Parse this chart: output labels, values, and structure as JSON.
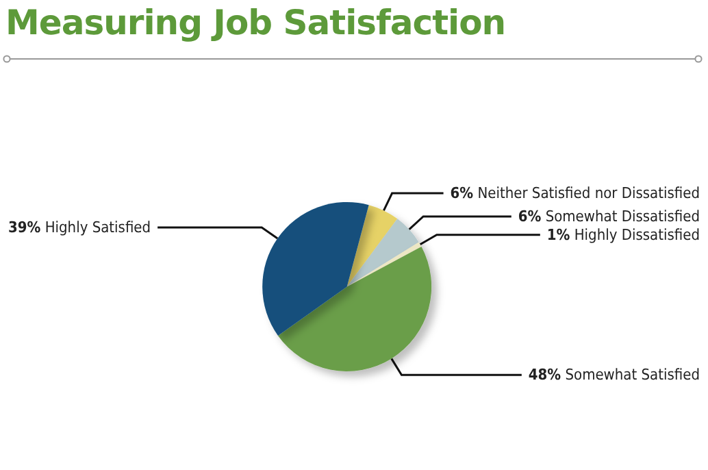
{
  "chart_data": {
    "type": "pie",
    "title": "Measuring Job Satisfaction",
    "categories": [
      "Neither Satisfied nor Dissatisfied",
      "Somewhat Dissatisfied",
      "Highly Dissatisfied",
      "Somewhat Satisfied",
      "Highly Satisfied"
    ],
    "values": [
      6,
      6,
      1,
      48,
      39
    ],
    "value_labels": [
      "6%",
      "6%",
      "1%",
      "48%",
      "39%"
    ],
    "colors": [
      "#e6d266",
      "#b5c9cd",
      "#ede7c4",
      "#6a9e48",
      "#144f7c"
    ],
    "legend": false
  }
}
